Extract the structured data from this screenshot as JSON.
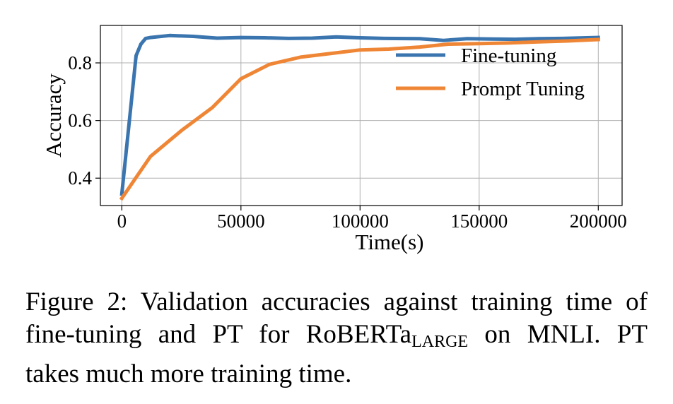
{
  "chart_data": {
    "type": "line",
    "xlabel": "Time(s)",
    "ylabel": "Accuracy",
    "xlim": [
      -9000,
      210000
    ],
    "ylim": [
      0.305,
      0.93
    ],
    "xticks": [
      0,
      50000,
      100000,
      150000,
      200000
    ],
    "xtick_labels": [
      "0",
      "50000",
      "100000",
      "150000",
      "200000"
    ],
    "yticks": [
      0.4,
      0.6,
      0.8
    ],
    "ytick_labels": [
      "0.4",
      "0.6",
      "0.8"
    ],
    "grid": true,
    "legend_position": "upper right",
    "series": [
      {
        "name": "Fine-tuning",
        "color": "#3b75af",
        "x": [
          0,
          6000,
          8000,
          10000,
          12000,
          20000,
          30000,
          40000,
          50000,
          60000,
          70000,
          80000,
          90000,
          100000,
          110000,
          125000,
          135000,
          145000,
          155000,
          165000,
          175000,
          185000,
          200000
        ],
        "y": [
          0.345,
          0.825,
          0.865,
          0.885,
          0.888,
          0.895,
          0.892,
          0.886,
          0.888,
          0.887,
          0.885,
          0.886,
          0.89,
          0.887,
          0.885,
          0.884,
          0.878,
          0.884,
          0.883,
          0.882,
          0.884,
          0.885,
          0.888
        ]
      },
      {
        "name": "Prompt Tuning",
        "color": "#ef8636",
        "x": [
          0,
          12000,
          25000,
          38000,
          50000,
          62000,
          75000,
          87000,
          100000,
          112000,
          125000,
          137000,
          150000,
          162000,
          175000,
          187000,
          200000
        ],
        "y": [
          0.33,
          0.475,
          0.565,
          0.645,
          0.745,
          0.795,
          0.82,
          0.832,
          0.845,
          0.848,
          0.855,
          0.865,
          0.867,
          0.869,
          0.873,
          0.876,
          0.881
        ]
      }
    ]
  },
  "caption": {
    "line1": "Figure 2: Validation accuracies against training time of",
    "line2_pre": "fine-tuning and PT for RoBERTa",
    "line2_sub": "LARGE",
    "line2_post": " on MNLI. PT",
    "line3": "takes much more training time."
  }
}
